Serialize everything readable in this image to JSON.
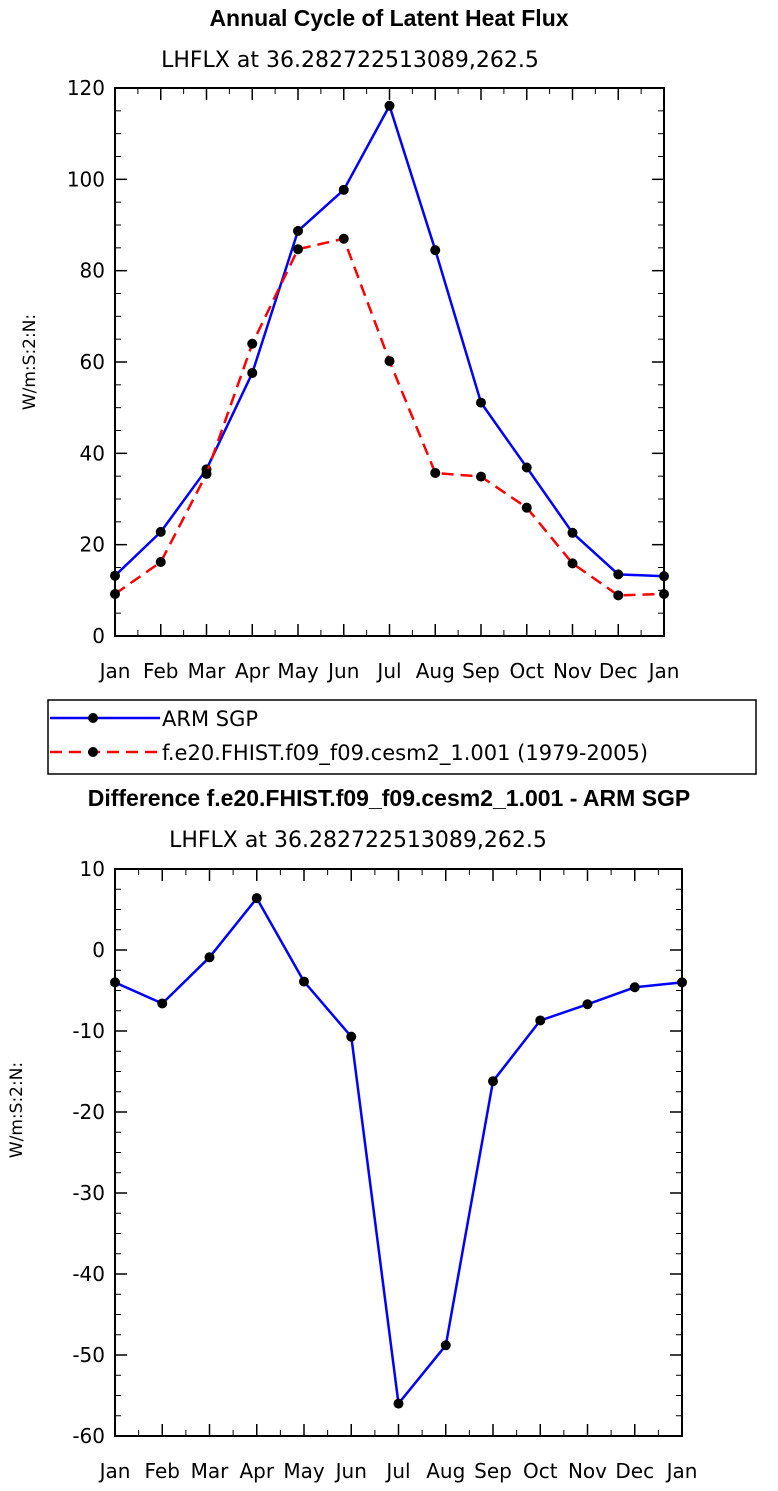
{
  "chart_data": [
    {
      "type": "line",
      "title": "Annual Cycle of Latent Heat Flux",
      "subtitle": "LHFLX at 36.282722513089,262.5",
      "ylabel": "W/m:S:2:N:",
      "categories": [
        "Jan",
        "Feb",
        "Mar",
        "Apr",
        "May",
        "Jun",
        "Jul",
        "Aug",
        "Sep",
        "Oct",
        "Nov",
        "Dec",
        "Jan"
      ],
      "ylim": [
        0,
        120
      ],
      "yticks": [
        "0",
        "20",
        "40",
        "60",
        "80",
        "100",
        "120"
      ],
      "series": [
        {
          "name": "ARM SGP",
          "color": "#0000ff",
          "dashed": false,
          "values": [
            13.2,
            22.8,
            36.5,
            57.6,
            88.7,
            97.7,
            116.1,
            84.5,
            51.1,
            36.9,
            22.6,
            13.5,
            13.1
          ]
        },
        {
          "name": "f.e20.FHIST.f09_f09.cesm2_1.001 (1979-2005)",
          "color": "#ff0000",
          "dashed": true,
          "values": [
            9.2,
            16.2,
            35.5,
            64.0,
            84.7,
            87.0,
            60.2,
            35.7,
            34.9,
            28.1,
            15.9,
            8.9,
            9.2
          ]
        }
      ],
      "legend": "bottom"
    },
    {
      "type": "line",
      "title": "Difference f.e20.FHIST.f09_f09.cesm2_1.001 - ARM SGP",
      "subtitle": "LHFLX at 36.282722513089,262.5",
      "ylabel": "W/m:S:2:N:",
      "categories": [
        "Jan",
        "Feb",
        "Mar",
        "Apr",
        "May",
        "Jun",
        "Jul",
        "Aug",
        "Sep",
        "Oct",
        "Nov",
        "Dec",
        "Jan"
      ],
      "ylim": [
        -60,
        10
      ],
      "yticks": [
        "-60",
        "-50",
        "-40",
        "-30",
        "-20",
        "-10",
        "0",
        "10"
      ],
      "series": [
        {
          "color": "#0000ff",
          "dashed": false,
          "values": [
            -4.0,
            -6.6,
            -0.9,
            6.4,
            -3.9,
            -10.7,
            -56.0,
            -48.8,
            -16.2,
            -8.7,
            -6.7,
            -4.6,
            -4.0
          ]
        }
      ]
    }
  ]
}
